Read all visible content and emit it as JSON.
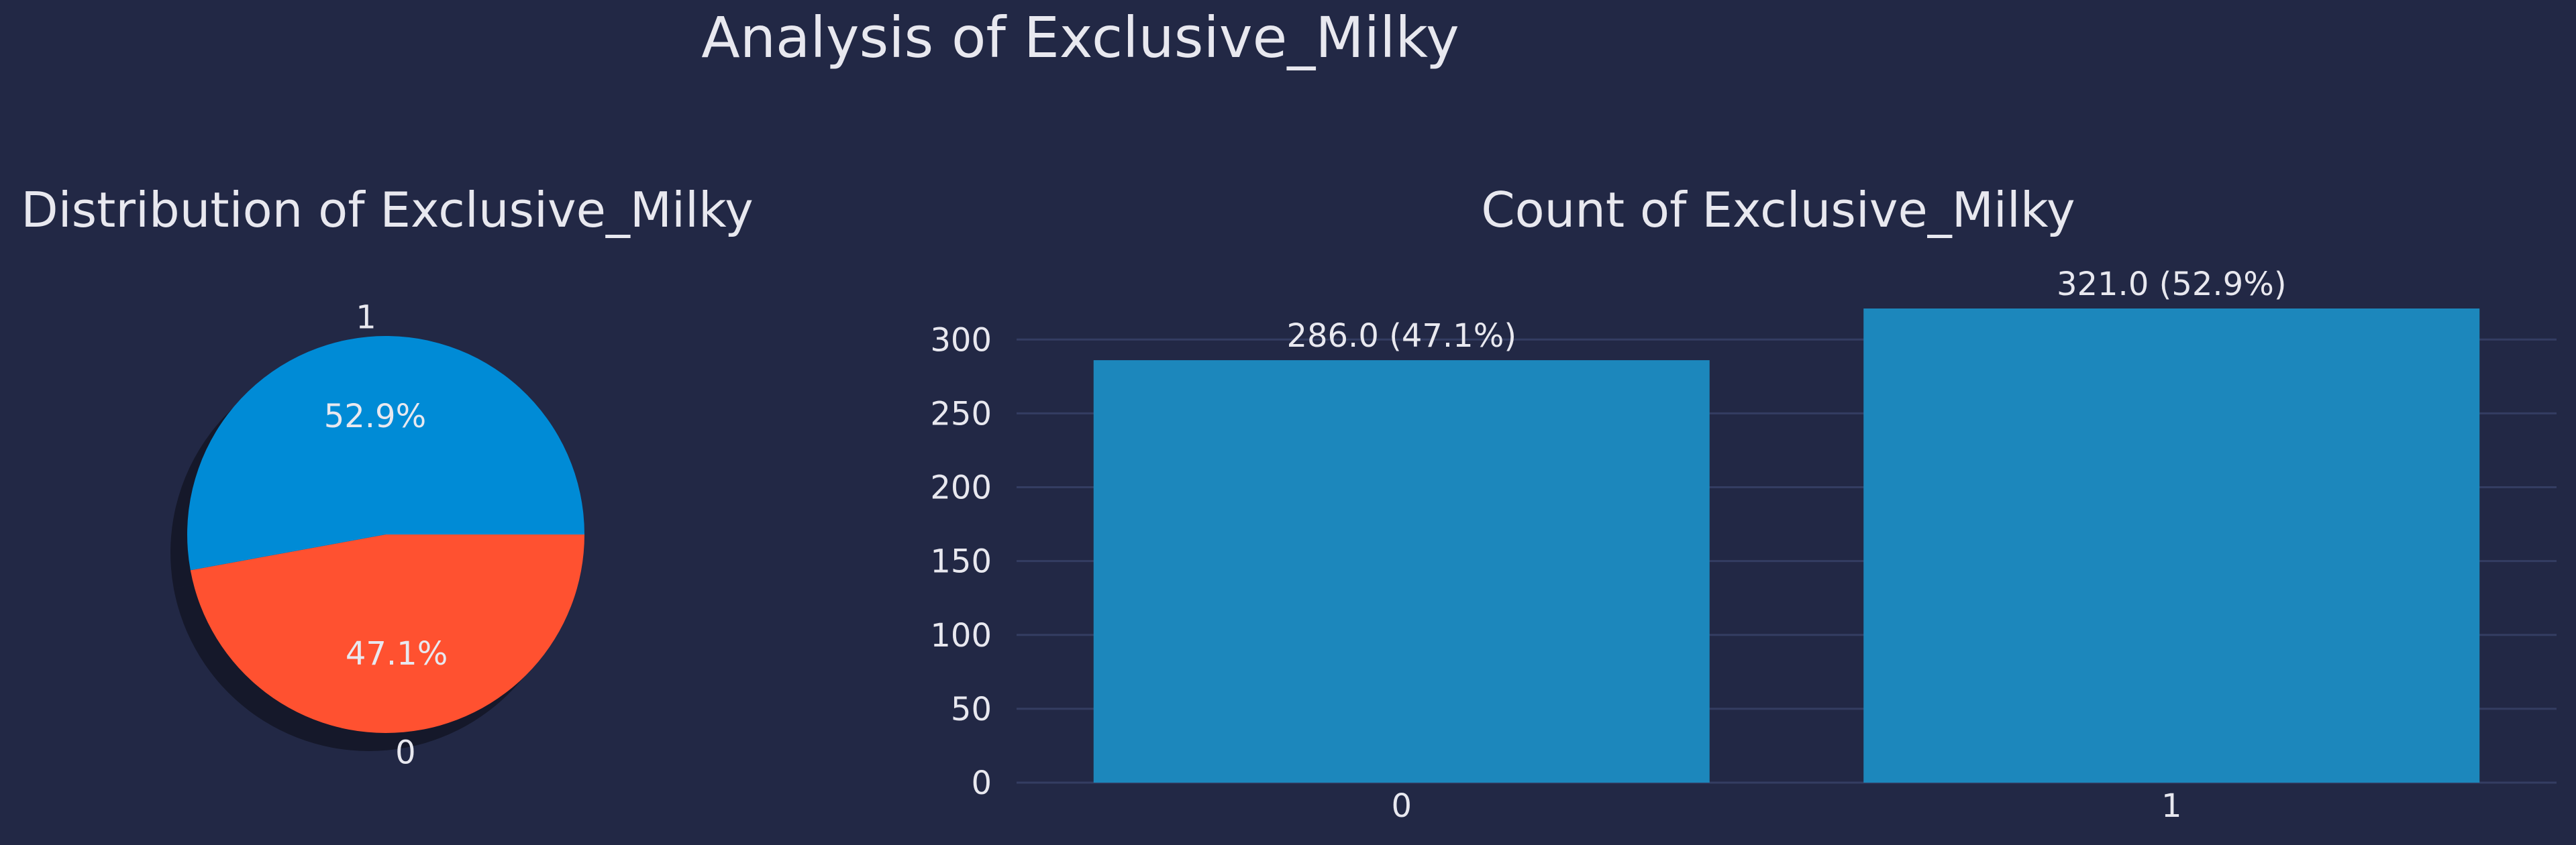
{
  "figure": {
    "title": "Analysis of Exclusive_Milky",
    "background": "#222845",
    "text_color": "#e8e8ef"
  },
  "chart_data": [
    {
      "type": "pie",
      "title": "Distribution of Exclusive_Milky",
      "labels": [
        "1",
        "0"
      ],
      "values": [
        321,
        286
      ],
      "percent_labels": [
        "52.9%",
        "47.1%"
      ],
      "colors": [
        "#008bd6",
        "#ff5130"
      ],
      "shadow": true
    },
    {
      "type": "bar",
      "title": "Count of Exclusive_Milky",
      "categories": [
        "0",
        "1"
      ],
      "values": [
        286,
        321
      ],
      "data_labels": [
        "286.0 (47.1%)",
        "321.0 (52.9%)"
      ],
      "color": "#1c87bc",
      "xlabel": "",
      "ylabel": "",
      "ylim": [
        0,
        321
      ],
      "yticks": [
        0,
        50,
        100,
        150,
        200,
        250,
        300
      ],
      "grid": "horizontal"
    }
  ]
}
